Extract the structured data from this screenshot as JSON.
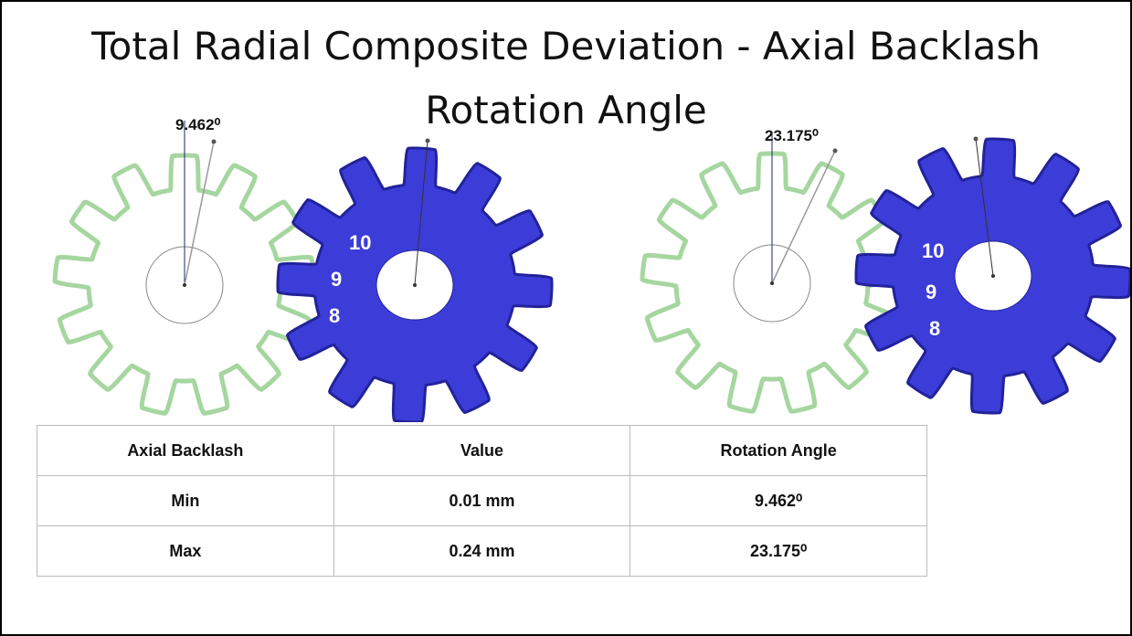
{
  "title": "Total Radial Composite Deviation - Axial Backlash Rotation Angle",
  "diagram": {
    "left": {
      "angle_label": "9.462⁰",
      "teeth": [
        "10",
        "9",
        "8"
      ]
    },
    "right": {
      "angle_label": "23.175⁰",
      "teeth": [
        "10",
        "9",
        "8"
      ]
    }
  },
  "table": {
    "header": [
      "Axial Backlash",
      "Value",
      "Rotation Angle"
    ],
    "rows": [
      [
        "Min",
        "0.01 mm",
        "9.462⁰"
      ],
      [
        "Max",
        "0.24 mm",
        "23.175⁰"
      ]
    ]
  }
}
